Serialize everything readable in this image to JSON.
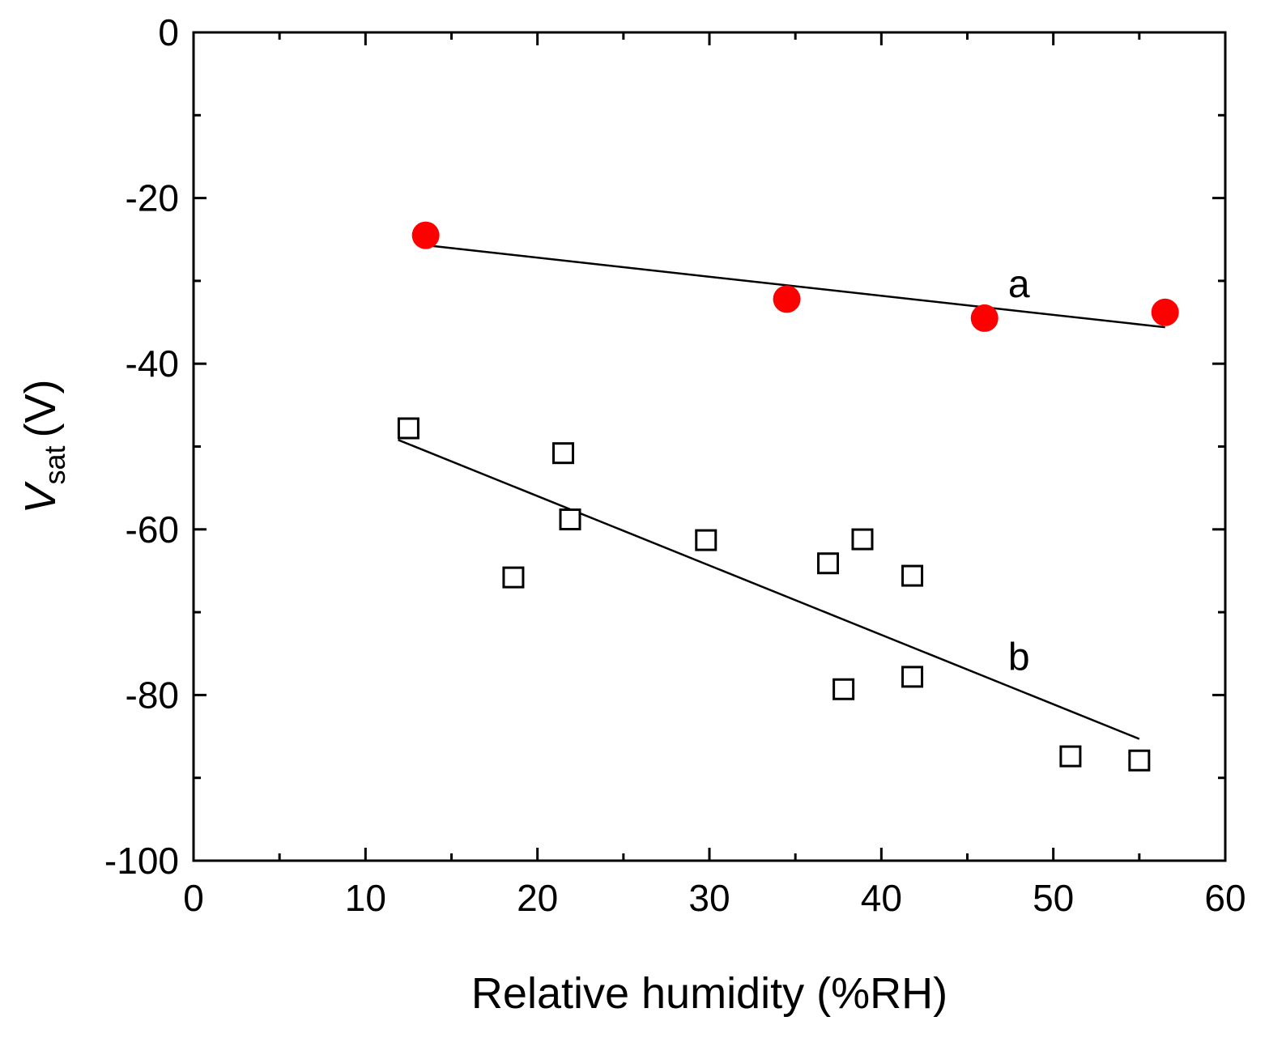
{
  "chart_data": {
    "type": "scatter",
    "title": "",
    "xlabel": "Relative humidity (%RH)",
    "ylabel": {
      "symbol": "V",
      "subscript": "sat",
      "unit": "(V)"
    },
    "xlim": [
      0,
      60
    ],
    "ylim": [
      -100,
      0
    ],
    "x_ticks": [
      0,
      10,
      20,
      30,
      40,
      50,
      60
    ],
    "x_tick_labels": [
      "0",
      "10",
      "20",
      "30",
      "40",
      "50",
      "60"
    ],
    "y_ticks": [
      0,
      -20,
      -40,
      -60,
      -80,
      -100
    ],
    "y_tick_labels": [
      "0",
      "-20",
      "-40",
      "-60",
      "-80",
      "-100"
    ],
    "x_minor_step": 5,
    "y_minor_step": 10,
    "grid": false,
    "series": [
      {
        "name": "a",
        "marker": "filled-circle",
        "color": "#ff0000",
        "points": [
          {
            "x": 13.5,
            "y": -24.5
          },
          {
            "x": 34.5,
            "y": -32.2
          },
          {
            "x": 46.0,
            "y": -34.5
          },
          {
            "x": 56.5,
            "y": -33.8
          }
        ],
        "fit": {
          "x": [
            13.5,
            56.5
          ],
          "y": [
            -25.7,
            -35.6
          ]
        },
        "label": {
          "text": "a",
          "x": 48.0,
          "y": -30.3
        }
      },
      {
        "name": "b",
        "marker": "open-square",
        "color": "#000000",
        "points": [
          {
            "x": 12.5,
            "y": -47.8
          },
          {
            "x": 18.6,
            "y": -65.8
          },
          {
            "x": 21.5,
            "y": -50.8
          },
          {
            "x": 21.9,
            "y": -58.8
          },
          {
            "x": 29.8,
            "y": -61.3
          },
          {
            "x": 36.9,
            "y": -64.1
          },
          {
            "x": 38.9,
            "y": -61.2
          },
          {
            "x": 41.8,
            "y": -65.6
          },
          {
            "x": 37.8,
            "y": -79.3
          },
          {
            "x": 41.8,
            "y": -77.8
          },
          {
            "x": 51.0,
            "y": -87.4
          },
          {
            "x": 55.0,
            "y": -87.9
          }
        ],
        "fit": {
          "x": [
            11.9,
            55.0
          ],
          "y": [
            -49.2,
            -85.3
          ]
        },
        "label": {
          "text": "b",
          "x": 48.0,
          "y": -75.3
        }
      }
    ]
  }
}
